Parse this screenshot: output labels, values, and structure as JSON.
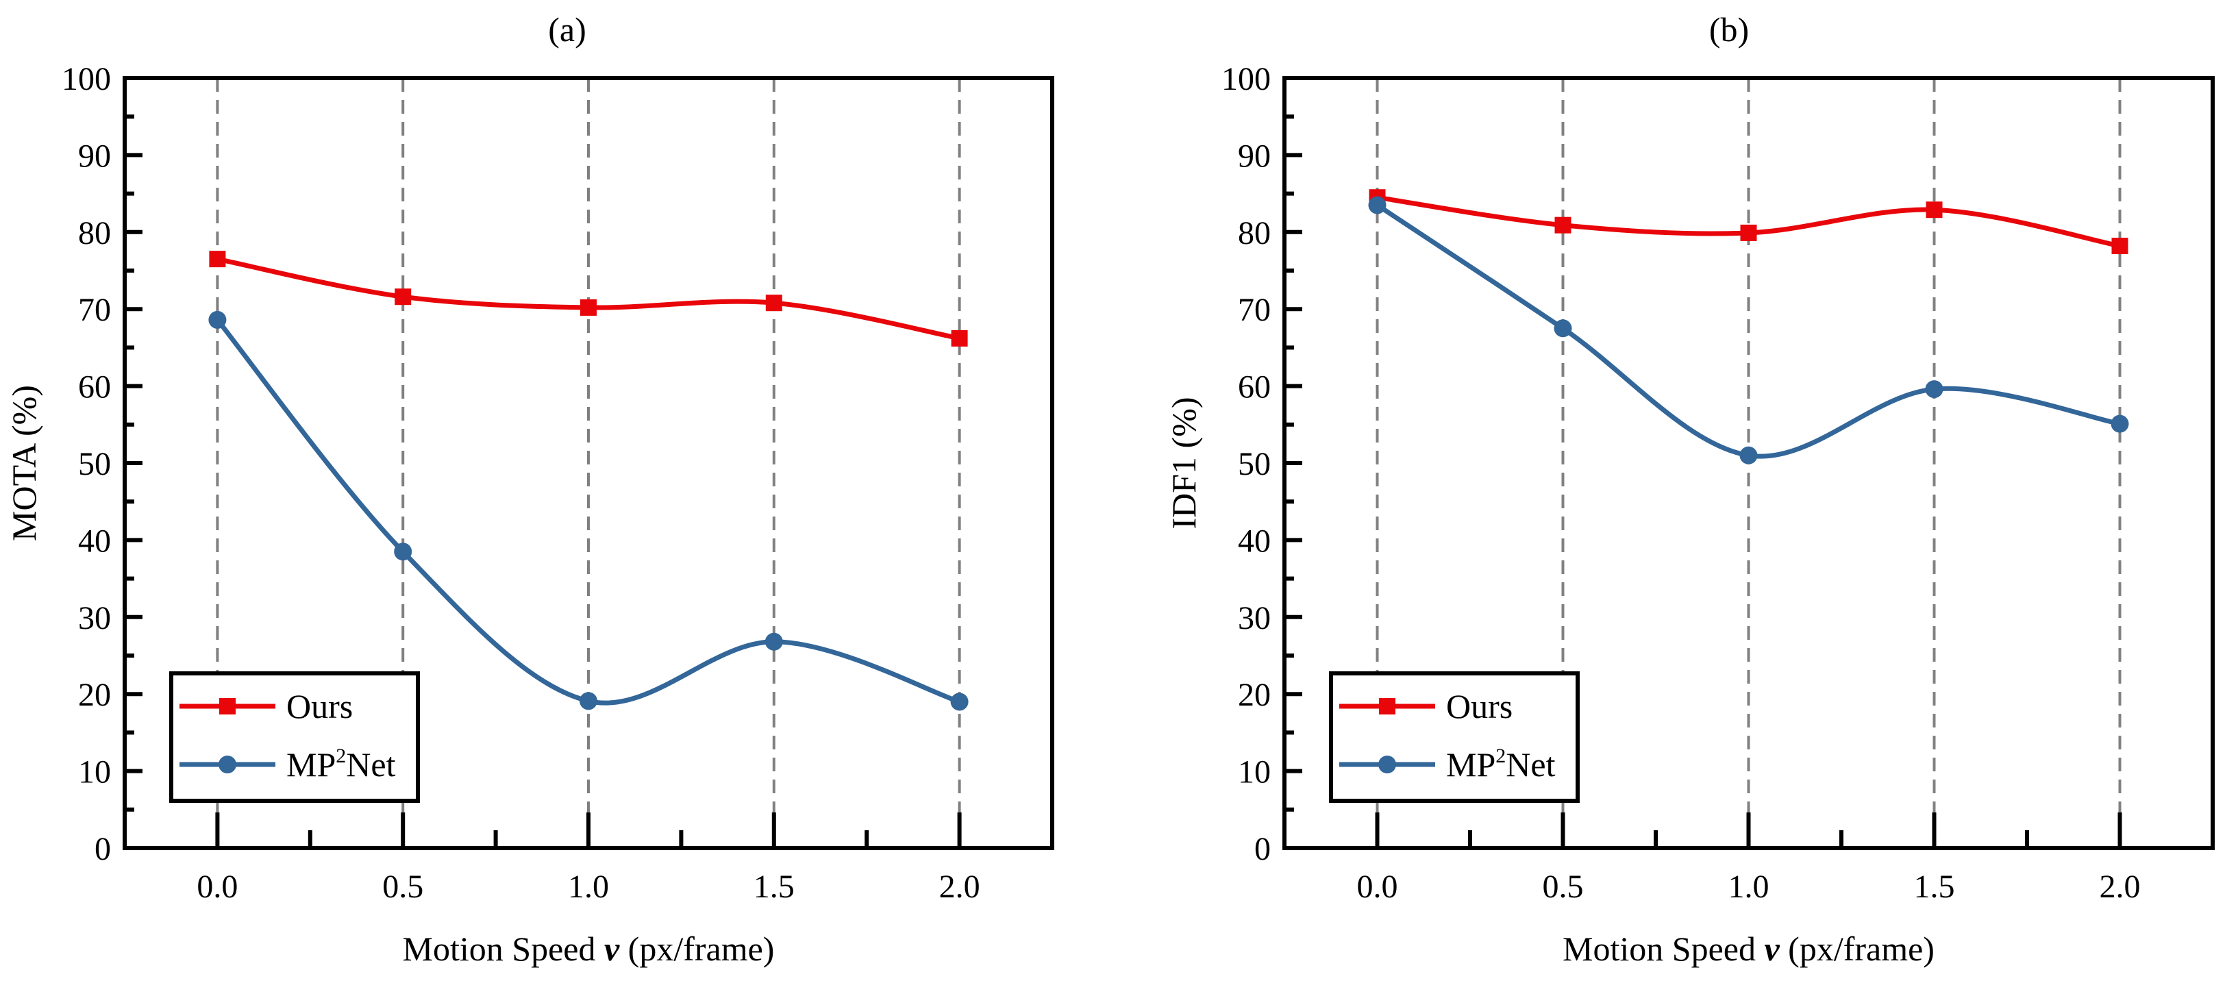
{
  "colors": {
    "ours": "#e8060a",
    "mp2net": "#336699",
    "guide": "#808080",
    "axis": "#000000"
  },
  "chart_data": [
    {
      "type": "line",
      "title": "(a)",
      "xlabel": {
        "prefix": "Motion Speed ",
        "var": "v",
        "suffix": " (px/frame)"
      },
      "ylabel": "MOTA (%)",
      "x": [
        0.0,
        0.5,
        1.0,
        1.5,
        2.0
      ],
      "xtick_labels": [
        "0.0",
        "0.5",
        "1.0",
        "1.5",
        "2.0"
      ],
      "ytick_labels": [
        "0",
        "10",
        "20",
        "30",
        "40",
        "50",
        "60",
        "70",
        "80",
        "90",
        "100"
      ],
      "xlim": [
        -0.25,
        2.25
      ],
      "ylim": [
        0,
        100
      ],
      "legend_position": "bottom-left",
      "series": [
        {
          "name": "Ours",
          "marker": "square",
          "color": "#e8060a",
          "values": [
            76.5,
            71.6,
            70.2,
            70.8,
            66.2
          ]
        },
        {
          "name": "MP2Net",
          "legend_parts": [
            "MP",
            "2",
            "Net"
          ],
          "marker": "circle",
          "color": "#336699",
          "values": [
            68.6,
            38.5,
            19.1,
            26.8,
            19.0
          ]
        }
      ]
    },
    {
      "type": "line",
      "title": "(b)",
      "xlabel": {
        "prefix": "Motion Speed ",
        "var": "v",
        "suffix": " (px/frame)"
      },
      "ylabel": "IDF1  (%)",
      "x": [
        0.0,
        0.5,
        1.0,
        1.5,
        2.0
      ],
      "xtick_labels": [
        "0.0",
        "0.5",
        "1.0",
        "1.5",
        "2.0"
      ],
      "ytick_labels": [
        "0",
        "10",
        "20",
        "30",
        "40",
        "50",
        "60",
        "70",
        "80",
        "90",
        "100"
      ],
      "xlim": [
        -0.25,
        2.25
      ],
      "ylim": [
        0,
        100
      ],
      "legend_position": "bottom-left",
      "series": [
        {
          "name": "Ours",
          "marker": "square",
          "color": "#e8060a",
          "values": [
            84.5,
            80.9,
            79.9,
            82.9,
            78.2
          ]
        },
        {
          "name": "MP2Net",
          "legend_parts": [
            "MP",
            "2",
            "Net"
          ],
          "marker": "circle",
          "color": "#336699",
          "values": [
            83.5,
            67.5,
            51.0,
            59.6,
            55.1
          ]
        }
      ]
    }
  ]
}
